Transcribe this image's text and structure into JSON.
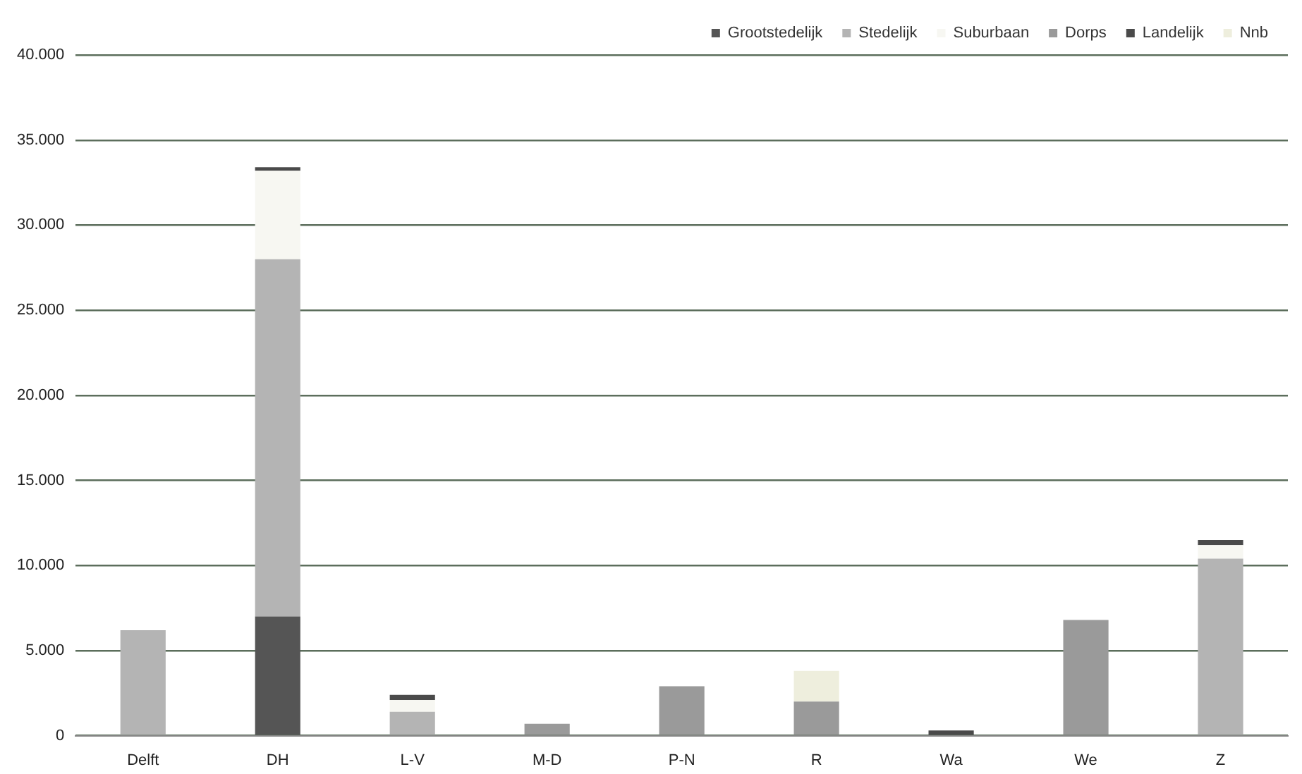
{
  "chart_data": {
    "type": "bar",
    "stacked": true,
    "categories": [
      "Delft",
      "DH",
      "L-V",
      "M-D",
      "P-N",
      "R",
      "Wa",
      "We",
      "Z"
    ],
    "series": [
      {
        "name": "Grootstedelijk",
        "color": "#555555",
        "values": [
          0,
          7000,
          0,
          0,
          0,
          0,
          0,
          0,
          0
        ]
      },
      {
        "name": "Stedelijk",
        "color": "#b4b4b4",
        "values": [
          6200,
          21000,
          1400,
          0,
          0,
          0,
          0,
          0,
          10400
        ]
      },
      {
        "name": "Suburbaan",
        "color": "#f7f7f2",
        "values": [
          0,
          5200,
          700,
          0,
          0,
          0,
          0,
          0,
          800
        ]
      },
      {
        "name": "Dorps",
        "color": "#9a9a9a",
        "values": [
          0,
          0,
          0,
          700,
          2900,
          2000,
          0,
          6800,
          0
        ]
      },
      {
        "name": "Landelijk",
        "color": "#4a4a4a",
        "values": [
          0,
          200,
          300,
          0,
          0,
          0,
          300,
          0,
          300
        ]
      },
      {
        "name": "Nnb",
        "color": "#eeeedd",
        "values": [
          0,
          0,
          0,
          0,
          0,
          1800,
          0,
          0,
          0
        ]
      }
    ],
    "ylim": [
      0,
      40000
    ],
    "yticks": [
      0,
      {
        "value": 5000,
        "label": "5.000"
      },
      {
        "value": 10000,
        "label": "10.000"
      },
      {
        "value": 15000,
        "label": "15.000"
      },
      {
        "value": 20000,
        "label": "20.000"
      },
      {
        "value": 25000,
        "label": "25.000"
      },
      {
        "value": 30000,
        "label": "30.000"
      },
      {
        "value": 35000,
        "label": "35.000"
      },
      {
        "value": 40000,
        "label": "40.000"
      }
    ],
    "grid": "y",
    "legend": "top right"
  }
}
